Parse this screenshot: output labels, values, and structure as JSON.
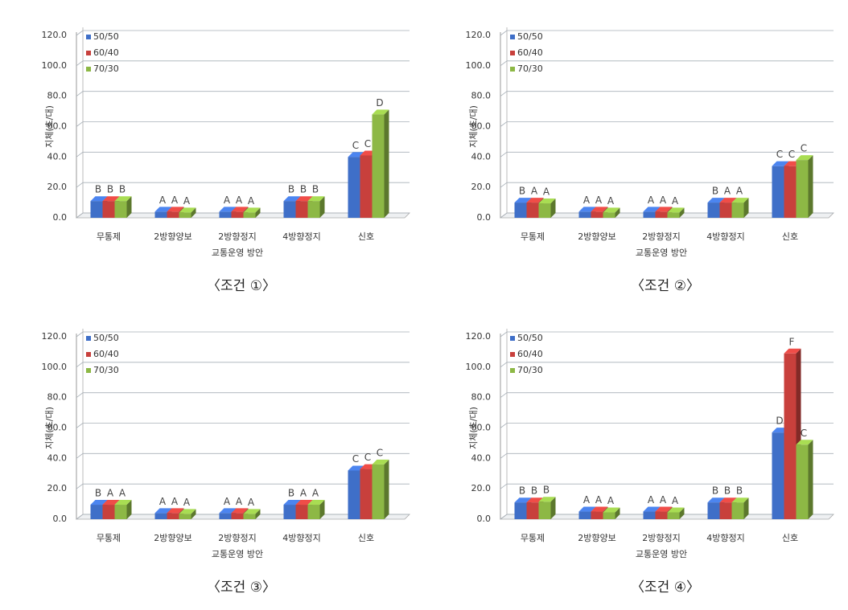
{
  "chart_data": [
    {
      "type": "bar",
      "caption": "〈조건 ①〉",
      "ylabel": "지체(초/대)",
      "xlabel": "교통운영 방안",
      "categories": [
        "무통제",
        "2방향양보",
        "2방향정지",
        "4방향정지",
        "신호"
      ],
      "ylim": [
        0,
        120
      ],
      "yticks": [
        {
          "value": 0,
          "label": "0.0"
        },
        {
          "value": 20,
          "label": "20.0"
        },
        {
          "value": 40,
          "label": "40.0"
        },
        {
          "value": 60,
          "label": "60.0"
        },
        {
          "value": 80,
          "label": "80.0"
        },
        {
          "value": 100,
          "label": "100.0"
        },
        {
          "value": 120,
          "label": "120.0"
        }
      ],
      "grid": true,
      "legend": "upper left",
      "series": [
        {
          "name": "50/50",
          "color": "#3f6fc8",
          "values": [
            11,
            4,
            4,
            11,
            40
          ],
          "letters": [
            "B",
            "A",
            "A",
            "B",
            "C"
          ]
        },
        {
          "name": "60/40",
          "color": "#c8403c",
          "values": [
            11,
            4,
            4,
            11,
            41
          ],
          "letters": [
            "B",
            "A",
            "A",
            "B",
            "C"
          ]
        },
        {
          "name": "70/30",
          "color": "#8db845",
          "values": [
            11,
            3.5,
            3.5,
            11,
            68
          ],
          "letters": [
            "B",
            "A",
            "A",
            "B",
            "D"
          ]
        }
      ]
    },
    {
      "type": "bar",
      "caption": "〈조건 ②〉",
      "ylabel": "지체(초/대)",
      "xlabel": "교통운영 방안",
      "categories": [
        "무통제",
        "2방향양보",
        "2방향정지",
        "4방향정지",
        "신호"
      ],
      "ylim": [
        0,
        120
      ],
      "yticks": [
        {
          "value": 0,
          "label": "0.0"
        },
        {
          "value": 20,
          "label": "20.0"
        },
        {
          "value": 40,
          "label": "40.0"
        },
        {
          "value": 60,
          "label": "60.0"
        },
        {
          "value": 80,
          "label": "80.0"
        },
        {
          "value": 100,
          "label": "100.0"
        },
        {
          "value": 120,
          "label": "120.0"
        }
      ],
      "grid": true,
      "legend": "upper left",
      "series": [
        {
          "name": "50/50",
          "color": "#3f6fc8",
          "values": [
            10,
            4,
            4,
            10,
            34
          ],
          "letters": [
            "B",
            "A",
            "A",
            "B",
            "C"
          ]
        },
        {
          "name": "60/40",
          "color": "#c8403c",
          "values": [
            10,
            4,
            4,
            10,
            34
          ],
          "letters": [
            "A",
            "A",
            "A",
            "A",
            "C"
          ]
        },
        {
          "name": "70/30",
          "color": "#8db845",
          "values": [
            9.5,
            3.5,
            3.5,
            10,
            38
          ],
          "letters": [
            "A",
            "A",
            "A",
            "A",
            "C"
          ]
        }
      ]
    },
    {
      "type": "bar",
      "caption": "〈조건 ③〉",
      "ylabel": "지체(초/대)",
      "xlabel": "교통운영 방안",
      "categories": [
        "무통제",
        "2방향양보",
        "2방향정지",
        "4방향정지",
        "신호"
      ],
      "ylim": [
        0,
        120
      ],
      "yticks": [
        {
          "value": 0,
          "label": "0.0"
        },
        {
          "value": 20,
          "label": "20.0"
        },
        {
          "value": 40,
          "label": "40.0"
        },
        {
          "value": 60,
          "label": "60.0"
        },
        {
          "value": 80,
          "label": "80.0"
        },
        {
          "value": 100,
          "label": "100.0"
        },
        {
          "value": 120,
          "label": "120.0"
        }
      ],
      "grid": true,
      "legend": "upper left",
      "series": [
        {
          "name": "50/50",
          "color": "#3f6fc8",
          "values": [
            9.5,
            4,
            4,
            9.5,
            32
          ],
          "letters": [
            "B",
            "A",
            "A",
            "B",
            "C"
          ]
        },
        {
          "name": "60/40",
          "color": "#c8403c",
          "values": [
            9.5,
            4,
            4,
            9.5,
            33
          ],
          "letters": [
            "A",
            "A",
            "A",
            "A",
            "C"
          ]
        },
        {
          "name": "70/30",
          "color": "#8db845",
          "values": [
            9.5,
            3.5,
            3.5,
            9.5,
            36
          ],
          "letters": [
            "A",
            "A",
            "A",
            "A",
            "C"
          ]
        }
      ]
    },
    {
      "type": "bar",
      "caption": "〈조건 ④〉",
      "ylabel": "지체(초/대)",
      "xlabel": "교통운영 방안",
      "categories": [
        "무통제",
        "2방향양보",
        "2방향정지",
        "4방향정지",
        "신호"
      ],
      "ylim": [
        0,
        120
      ],
      "yticks": [
        {
          "value": 0,
          "label": "0.0"
        },
        {
          "value": 20,
          "label": "20.0"
        },
        {
          "value": 40,
          "label": "40.0"
        },
        {
          "value": 60,
          "label": "60.0"
        },
        {
          "value": 80,
          "label": "80.0"
        },
        {
          "value": 100,
          "label": "100.0"
        },
        {
          "value": 120,
          "label": "120.0"
        }
      ],
      "grid": true,
      "legend": "upper left",
      "series": [
        {
          "name": "50/50",
          "color": "#3f6fc8",
          "values": [
            11,
            5,
            5,
            11,
            57
          ],
          "letters": [
            "B",
            "A",
            "A",
            "B",
            "D"
          ]
        },
        {
          "name": "60/40",
          "color": "#c8403c",
          "values": [
            11,
            5,
            5,
            11,
            109
          ],
          "letters": [
            "B",
            "A",
            "A",
            "B",
            "F"
          ]
        },
        {
          "name": "70/30",
          "color": "#8db845",
          "values": [
            11.5,
            4.5,
            4.5,
            11,
            49
          ],
          "letters": [
            "B",
            "A",
            "A",
            "B",
            "C"
          ]
        }
      ]
    }
  ]
}
